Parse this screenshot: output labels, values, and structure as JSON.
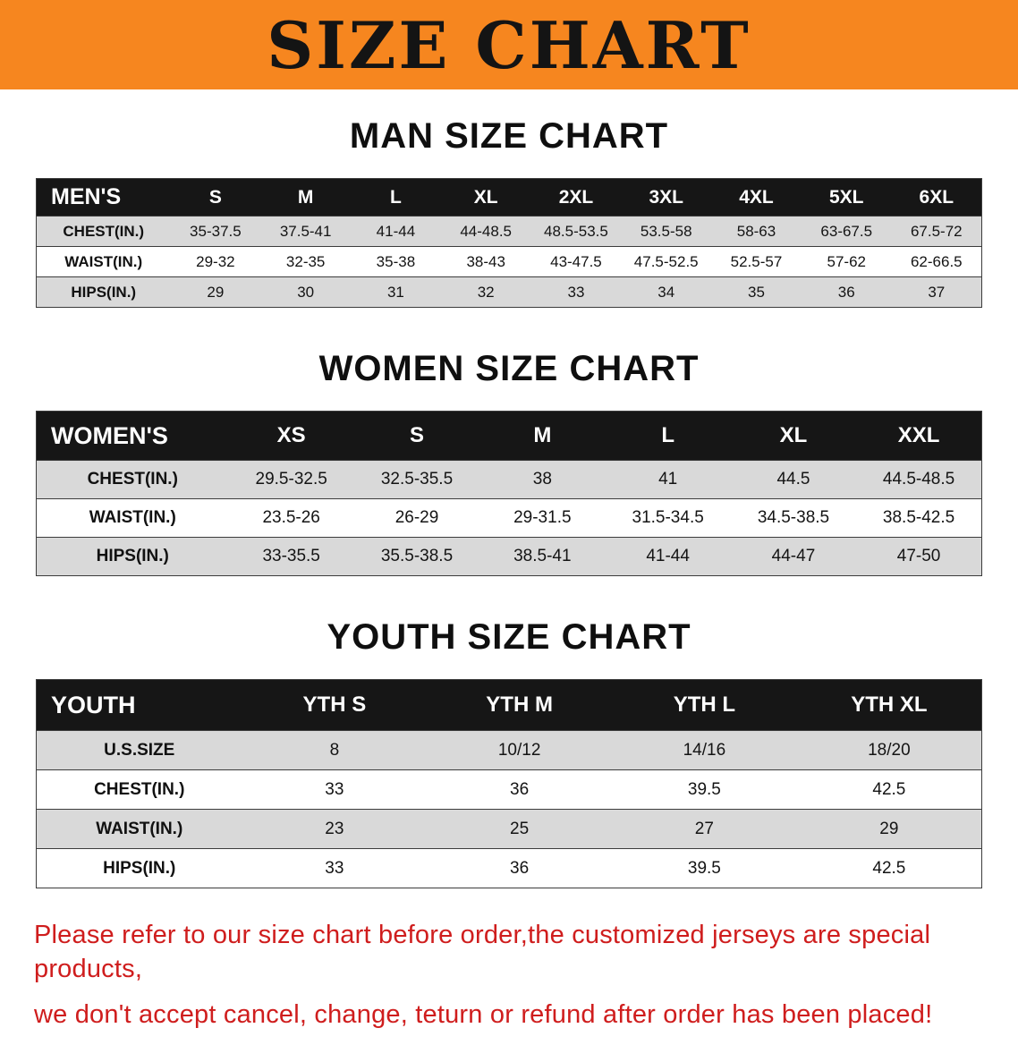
{
  "banner": {
    "title": "SIZE CHART"
  },
  "sections": {
    "men": {
      "heading": "MAN SIZE CHART"
    },
    "women": {
      "heading": "WOMEN SIZE CHART"
    },
    "youth": {
      "heading": "YOUTH SIZE CHART"
    }
  },
  "tables": {
    "men": {
      "header": [
        "MEN'S",
        "S",
        "M",
        "L",
        "XL",
        "2XL",
        "3XL",
        "4XL",
        "5XL",
        "6XL"
      ],
      "rows": [
        {
          "label": "CHEST(IN.)",
          "values": [
            "35-37.5",
            "37.5-41",
            "41-44",
            "44-48.5",
            "48.5-53.5",
            "53.5-58",
            "58-63",
            "63-67.5",
            "67.5-72"
          ]
        },
        {
          "label": "WAIST(IN.)",
          "values": [
            "29-32",
            "32-35",
            "35-38",
            "38-43",
            "43-47.5",
            "47.5-52.5",
            "52.5-57",
            "57-62",
            "62-66.5"
          ]
        },
        {
          "label": "HIPS(IN.)",
          "values": [
            "29",
            "30",
            "31",
            "32",
            "33",
            "34",
            "35",
            "36",
            "37"
          ]
        }
      ]
    },
    "women": {
      "header": [
        "WOMEN'S",
        "XS",
        "S",
        "M",
        "L",
        "XL",
        "XXL"
      ],
      "rows": [
        {
          "label": "CHEST(IN.)",
          "values": [
            "29.5-32.5",
            "32.5-35.5",
            "38",
            "41",
            "44.5",
            "44.5-48.5"
          ]
        },
        {
          "label": "WAIST(IN.)",
          "values": [
            "23.5-26",
            "26-29",
            "29-31.5",
            "31.5-34.5",
            "34.5-38.5",
            "38.5-42.5"
          ]
        },
        {
          "label": "HIPS(IN.)",
          "values": [
            "33-35.5",
            "35.5-38.5",
            "38.5-41",
            "41-44",
            "44-47",
            "47-50"
          ]
        }
      ]
    },
    "youth": {
      "header": [
        "YOUTH",
        "YTH S",
        "YTH M",
        "YTH L",
        "YTH XL"
      ],
      "rows": [
        {
          "label": "U.S.SIZE",
          "values": [
            "8",
            "10/12",
            "14/16",
            "18/20"
          ]
        },
        {
          "label": "CHEST(IN.)",
          "values": [
            "33",
            "36",
            "39.5",
            "42.5"
          ]
        },
        {
          "label": "WAIST(IN.)",
          "values": [
            "23",
            "25",
            "27",
            "29"
          ]
        },
        {
          "label": "HIPS(IN.)",
          "values": [
            "33",
            "36",
            "39.5",
            "42.5"
          ]
        }
      ]
    }
  },
  "disclaimer": {
    "line1": "Please refer to our size chart before order,the customized jerseys are special products,",
    "line2": "we don't accept cancel, change, teturn or refund after order has been placed!"
  },
  "colors": {
    "banner_bg": "#f6861f",
    "table_header_bg": "#161616",
    "row_alt_bg": "#d9d9d9",
    "border": "#3c3c3c",
    "disclaimer_text": "#cf1d1d",
    "title_text": "#141414"
  }
}
